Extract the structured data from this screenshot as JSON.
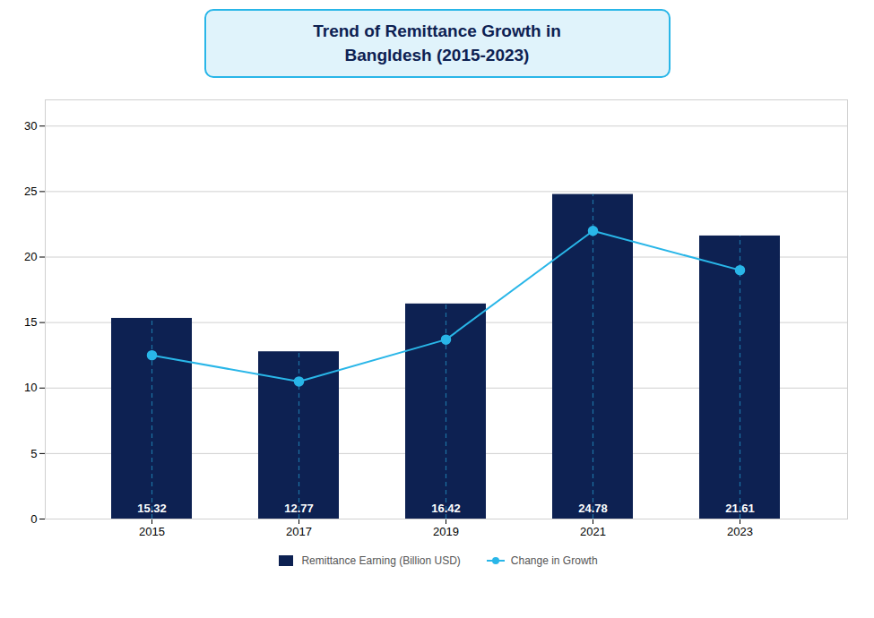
{
  "chart_data": {
    "type": "bar",
    "title": "Trend of Remittance Growth in\nBangldesh (2015-2023)",
    "categories": [
      "2015",
      "2017",
      "2019",
      "2021",
      "2023"
    ],
    "series": [
      {
        "name": "Remittance Earning (Billion USD)",
        "type": "bar",
        "color": "#0d2152",
        "values": [
          15.32,
          12.77,
          16.42,
          24.78,
          21.61
        ],
        "data_labels": true
      },
      {
        "name": "Change in Growth",
        "type": "line",
        "color": "#29b6e8",
        "marker": "circle",
        "values": [
          12.5,
          10.5,
          13.7,
          22.0,
          19.0
        ]
      }
    ],
    "ylim": [
      0,
      32
    ],
    "yticks": [
      0,
      5,
      10,
      15,
      20,
      25,
      30
    ],
    "grid": true,
    "legend": "bottom"
  }
}
